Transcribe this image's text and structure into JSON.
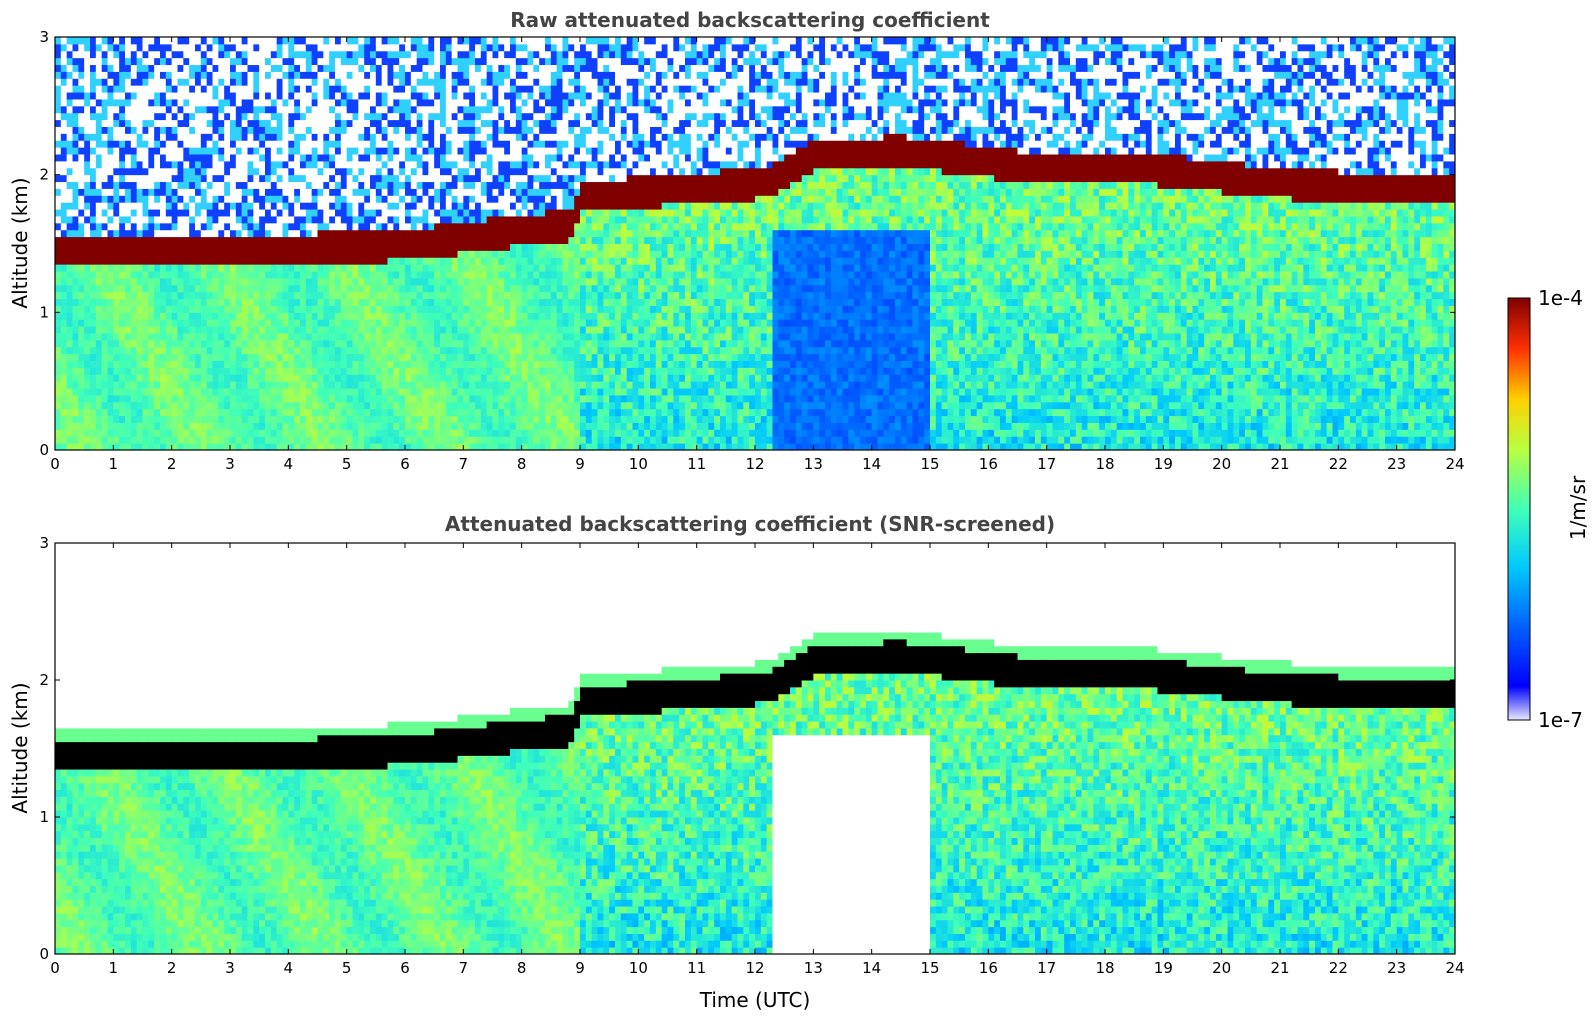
{
  "chart_data": [
    {
      "type": "heatmap",
      "title": "Raw attenuated backscattering coefficient",
      "xlabel": "",
      "ylabel": "Altitude (km)",
      "xlim": [
        0,
        24
      ],
      "ylim": [
        0,
        3
      ],
      "x_ticks": [
        "0",
        "1",
        "2",
        "3",
        "4",
        "5",
        "6",
        "7",
        "8",
        "9",
        "10",
        "11",
        "12",
        "13",
        "14",
        "15",
        "16",
        "17",
        "18",
        "19",
        "20",
        "21",
        "22",
        "23",
        "24"
      ],
      "y_ticks": [
        "0",
        "1",
        "2",
        "3"
      ],
      "screening": "none",
      "layer_top_km": [
        {
          "time": 0,
          "altitude": 1.55
        },
        {
          "time": 3,
          "altitude": 1.55
        },
        {
          "time": 6,
          "altitude": 1.6
        },
        {
          "time": 8.9,
          "altitude": 1.75
        },
        {
          "time": 9.0,
          "altitude": 1.95
        },
        {
          "time": 12.2,
          "altitude": 2.05
        },
        {
          "time": 13.0,
          "altitude": 2.25
        },
        {
          "time": 14.5,
          "altitude": 2.28
        },
        {
          "time": 17.0,
          "altitude": 2.15
        },
        {
          "time": 18.8,
          "altitude": 2.15
        },
        {
          "time": 21.0,
          "altitude": 2.05
        },
        {
          "time": 23.0,
          "altitude": 2.0
        },
        {
          "time": 24,
          "altitude": 2.0
        }
      ]
    },
    {
      "type": "heatmap",
      "title": "Attenuated backscattering coefficient (SNR-screened)",
      "xlabel": "Time (UTC)",
      "ylabel": "Altitude (km)",
      "xlim": [
        0,
        24
      ],
      "ylim": [
        0,
        3
      ],
      "x_ticks": [
        "0",
        "1",
        "2",
        "3",
        "4",
        "5",
        "6",
        "7",
        "8",
        "9",
        "10",
        "11",
        "12",
        "13",
        "14",
        "15",
        "16",
        "17",
        "18",
        "19",
        "20",
        "21",
        "22",
        "23",
        "24"
      ],
      "y_ticks": [
        "0",
        "1",
        "2",
        "3"
      ],
      "screening": "SNR",
      "layer_top_km": [
        {
          "time": 0,
          "altitude": 1.55
        },
        {
          "time": 3,
          "altitude": 1.55
        },
        {
          "time": 6,
          "altitude": 1.6
        },
        {
          "time": 8.9,
          "altitude": 1.75
        },
        {
          "time": 9.0,
          "altitude": 1.95
        },
        {
          "time": 12.2,
          "altitude": 2.05
        },
        {
          "time": 13.0,
          "altitude": 2.25
        },
        {
          "time": 14.5,
          "altitude": 2.28
        },
        {
          "time": 17.0,
          "altitude": 2.15
        },
        {
          "time": 18.8,
          "altitude": 2.15
        },
        {
          "time": 21.0,
          "altitude": 2.05
        },
        {
          "time": 23.0,
          "altitude": 2.0
        },
        {
          "time": 24,
          "altitude": 2.0
        }
      ]
    }
  ],
  "colorbar": {
    "max_label": "1e-4",
    "min_label": "1e-7",
    "unit_label": "1/m/sr",
    "colormap": "jet"
  }
}
